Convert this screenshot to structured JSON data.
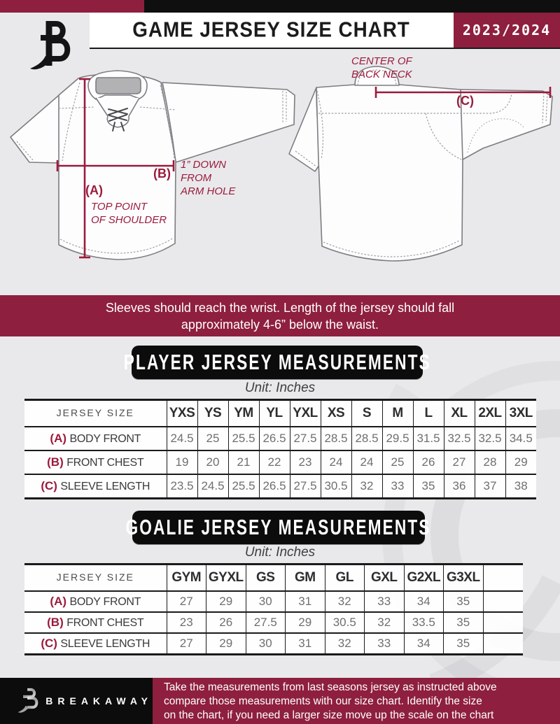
{
  "colors": {
    "maroon": "#8E1F3F",
    "maroon_line": "#9B1B3C",
    "black": "#0f0f10",
    "page_bg": "#E9E9EB"
  },
  "header": {
    "title": "GAME JERSEY SIZE CHART",
    "season": "2023/2024"
  },
  "diagram": {
    "front": {
      "label_a": "(A)",
      "note_a": [
        "TOP POINT",
        "OF SHOULDER"
      ],
      "label_b": "(B)",
      "note_b": [
        "1” DOWN",
        "FROM",
        "ARM HOLE"
      ]
    },
    "back": {
      "label_c": "(C)",
      "note_c": [
        "CENTER OF",
        "BACK NECK"
      ]
    }
  },
  "banner": {
    "lines": [
      "Sleeves should reach the wrist. Length of the jersey should fall",
      "approximately 4-6” below the waist."
    ]
  },
  "player_section": {
    "title": "PLAYER JERSEY MEASUREMENTS",
    "unit": "Unit: Inches",
    "table": {
      "corner": "JERSEY SIZE",
      "columns": [
        "YXS",
        "YS",
        "YM",
        "YL",
        "YXL",
        "XS",
        "S",
        "M",
        "L",
        "XL",
        "2XL",
        "3XL"
      ],
      "rows": [
        {
          "key": "(A)",
          "label": "BODY FRONT",
          "values": [
            "24.5",
            "25",
            "25.5",
            "26.5",
            "27.5",
            "28.5",
            "28.5",
            "29.5",
            "31.5",
            "32.5",
            "32.5",
            "34.5"
          ]
        },
        {
          "key": "(B)",
          "label": "FRONT CHEST",
          "values": [
            "19",
            "20",
            "21",
            "22",
            "23",
            "24",
            "24",
            "25",
            "26",
            "27",
            "28",
            "29"
          ]
        },
        {
          "key": "(C)",
          "label": "SLEEVE LENGTH",
          "values": [
            "23.5",
            "24.5",
            "25.5",
            "26.5",
            "27.5",
            "30.5",
            "32",
            "33",
            "35",
            "36",
            "37",
            "38"
          ]
        }
      ]
    }
  },
  "goalie_section": {
    "title": "GOALIE JERSEY MEASUREMENTS",
    "unit": "Unit: Inches",
    "table": {
      "corner": "JERSEY SIZE",
      "columns": [
        "GYM",
        "GYXL",
        "GS",
        "GM",
        "GL",
        "GXL",
        "G2XL",
        "G3XL",
        ""
      ],
      "rows": [
        {
          "key": "(A)",
          "label": "BODY FRONT",
          "values": [
            "27",
            "29",
            "30",
            "31",
            "32",
            "33",
            "34",
            "35",
            ""
          ]
        },
        {
          "key": "(B)",
          "label": "FRONT CHEST",
          "values": [
            "23",
            "26",
            "27.5",
            "29",
            "30.5",
            "32",
            "33.5",
            "35",
            ""
          ]
        },
        {
          "key": "(C)",
          "label": "SLEEVE LENGTH",
          "values": [
            "27",
            "29",
            "30",
            "31",
            "32",
            "33",
            "34",
            "35",
            ""
          ]
        }
      ]
    }
  },
  "footer": {
    "brand": "BREAKAWAY",
    "note_lines": [
      "Take the measurements from last seasons jersey as instructed above",
      "compare those measurements  with our size chart. Identify the size",
      "on the chart, if you need a larger size move up the scale on the chart"
    ]
  }
}
